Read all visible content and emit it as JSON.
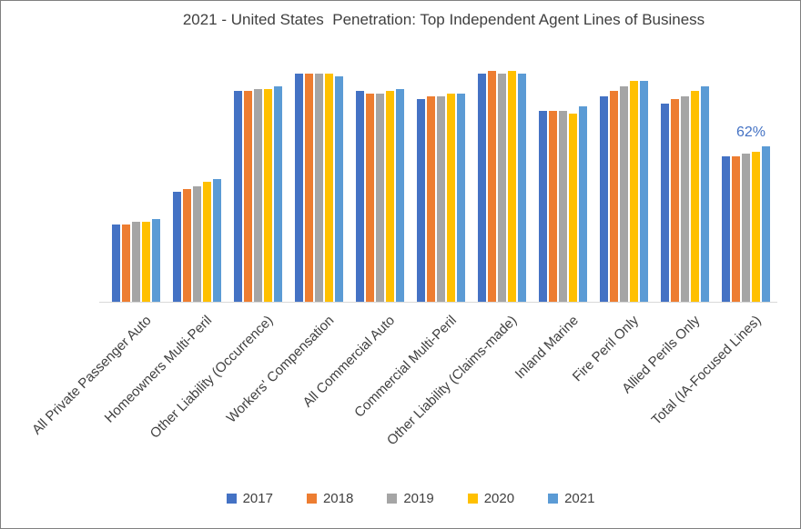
{
  "chart_data": {
    "type": "bar",
    "title": "2021 - United States  Penetration: Top Independent Agent Lines of Business",
    "categories": [
      "All Private Passenger Auto",
      "Homeowners Multi-Peril",
      "Other Liability (Occurrence)",
      "Workers' Compensation",
      "All Commercial Auto",
      "Commercial Multi-Peril",
      "Other Liability (Claims-made)",
      "Inland Marine",
      "Fire Peril Only",
      "Allied Perils Only",
      "Total (IA-Focused Lines)"
    ],
    "series": [
      {
        "name": "2017",
        "color": "#4472C4",
        "values": [
          31,
          44,
          84,
          91,
          84,
          81,
          91,
          76,
          82,
          79,
          58
        ]
      },
      {
        "name": "2018",
        "color": "#ED7D31",
        "values": [
          31,
          45,
          84,
          91,
          83,
          82,
          92,
          76,
          84,
          81,
          58
        ]
      },
      {
        "name": "2019",
        "color": "#A5A5A5",
        "values": [
          32,
          46,
          85,
          91,
          83,
          82,
          91,
          76,
          86,
          82,
          59
        ]
      },
      {
        "name": "2020",
        "color": "#FFC000",
        "values": [
          32,
          48,
          85,
          91,
          84,
          83,
          92,
          75,
          88,
          84,
          60
        ]
      },
      {
        "name": "2021",
        "color": "#5B9BD5",
        "values": [
          33,
          49,
          86,
          90,
          85,
          83,
          91,
          78,
          88,
          86,
          62
        ]
      }
    ],
    "unit": "%",
    "ylim": [
      0,
      100
    ],
    "grid": false,
    "legend_position": "bottom",
    "annotation": {
      "text": "62%",
      "color": "#4472C4"
    }
  }
}
